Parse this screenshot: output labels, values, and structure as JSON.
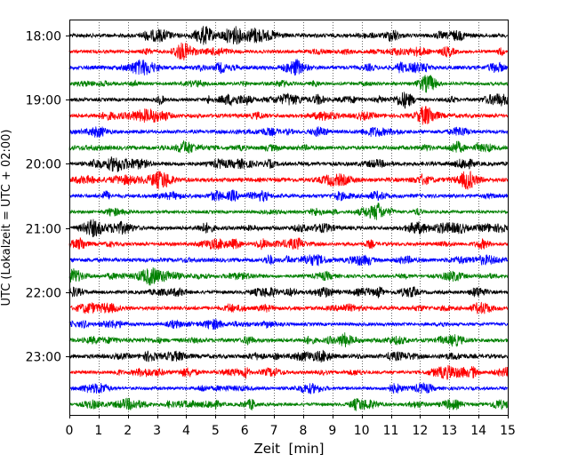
{
  "chart_data": {
    "type": "line",
    "title": "",
    "xlabel": "Zeit  [min]",
    "ylabel": "UTC (Lokalzeit = UTC + 02:00)",
    "xlim": [
      0,
      15
    ],
    "x_ticks": [
      0,
      1,
      2,
      3,
      4,
      5,
      6,
      7,
      8,
      9,
      10,
      11,
      12,
      13,
      14,
      15
    ],
    "y_tick_labels": [
      "18:00",
      "19:00",
      "20:00",
      "21:00",
      "22:00",
      "23:00"
    ],
    "trace_interval_minutes": 15,
    "trace_count": 24,
    "trace_color_cycle": [
      "#000000",
      "#ff0000",
      "#0000ff",
      "#008000"
    ],
    "grid": {
      "x": true,
      "y": false,
      "style": "dotted"
    },
    "series": [
      {
        "start": "18:00",
        "color": "#000000"
      },
      {
        "start": "18:15",
        "color": "#ff0000"
      },
      {
        "start": "18:30",
        "color": "#0000ff"
      },
      {
        "start": "18:45",
        "color": "#008000"
      },
      {
        "start": "19:00",
        "color": "#000000"
      },
      {
        "start": "19:15",
        "color": "#ff0000"
      },
      {
        "start": "19:30",
        "color": "#0000ff"
      },
      {
        "start": "19:45",
        "color": "#008000"
      },
      {
        "start": "20:00",
        "color": "#000000"
      },
      {
        "start": "20:15",
        "color": "#ff0000"
      },
      {
        "start": "20:30",
        "color": "#0000ff"
      },
      {
        "start": "20:45",
        "color": "#008000"
      },
      {
        "start": "21:00",
        "color": "#000000"
      },
      {
        "start": "21:15",
        "color": "#ff0000"
      },
      {
        "start": "21:30",
        "color": "#0000ff"
      },
      {
        "start": "21:45",
        "color": "#008000"
      },
      {
        "start": "22:00",
        "color": "#000000"
      },
      {
        "start": "22:15",
        "color": "#ff0000"
      },
      {
        "start": "22:30",
        "color": "#0000ff"
      },
      {
        "start": "22:45",
        "color": "#008000"
      },
      {
        "start": "23:00",
        "color": "#000000"
      },
      {
        "start": "23:15",
        "color": "#ff0000"
      },
      {
        "start": "23:30",
        "color": "#0000ff"
      },
      {
        "start": "23:45",
        "color": "#008000"
      }
    ]
  }
}
